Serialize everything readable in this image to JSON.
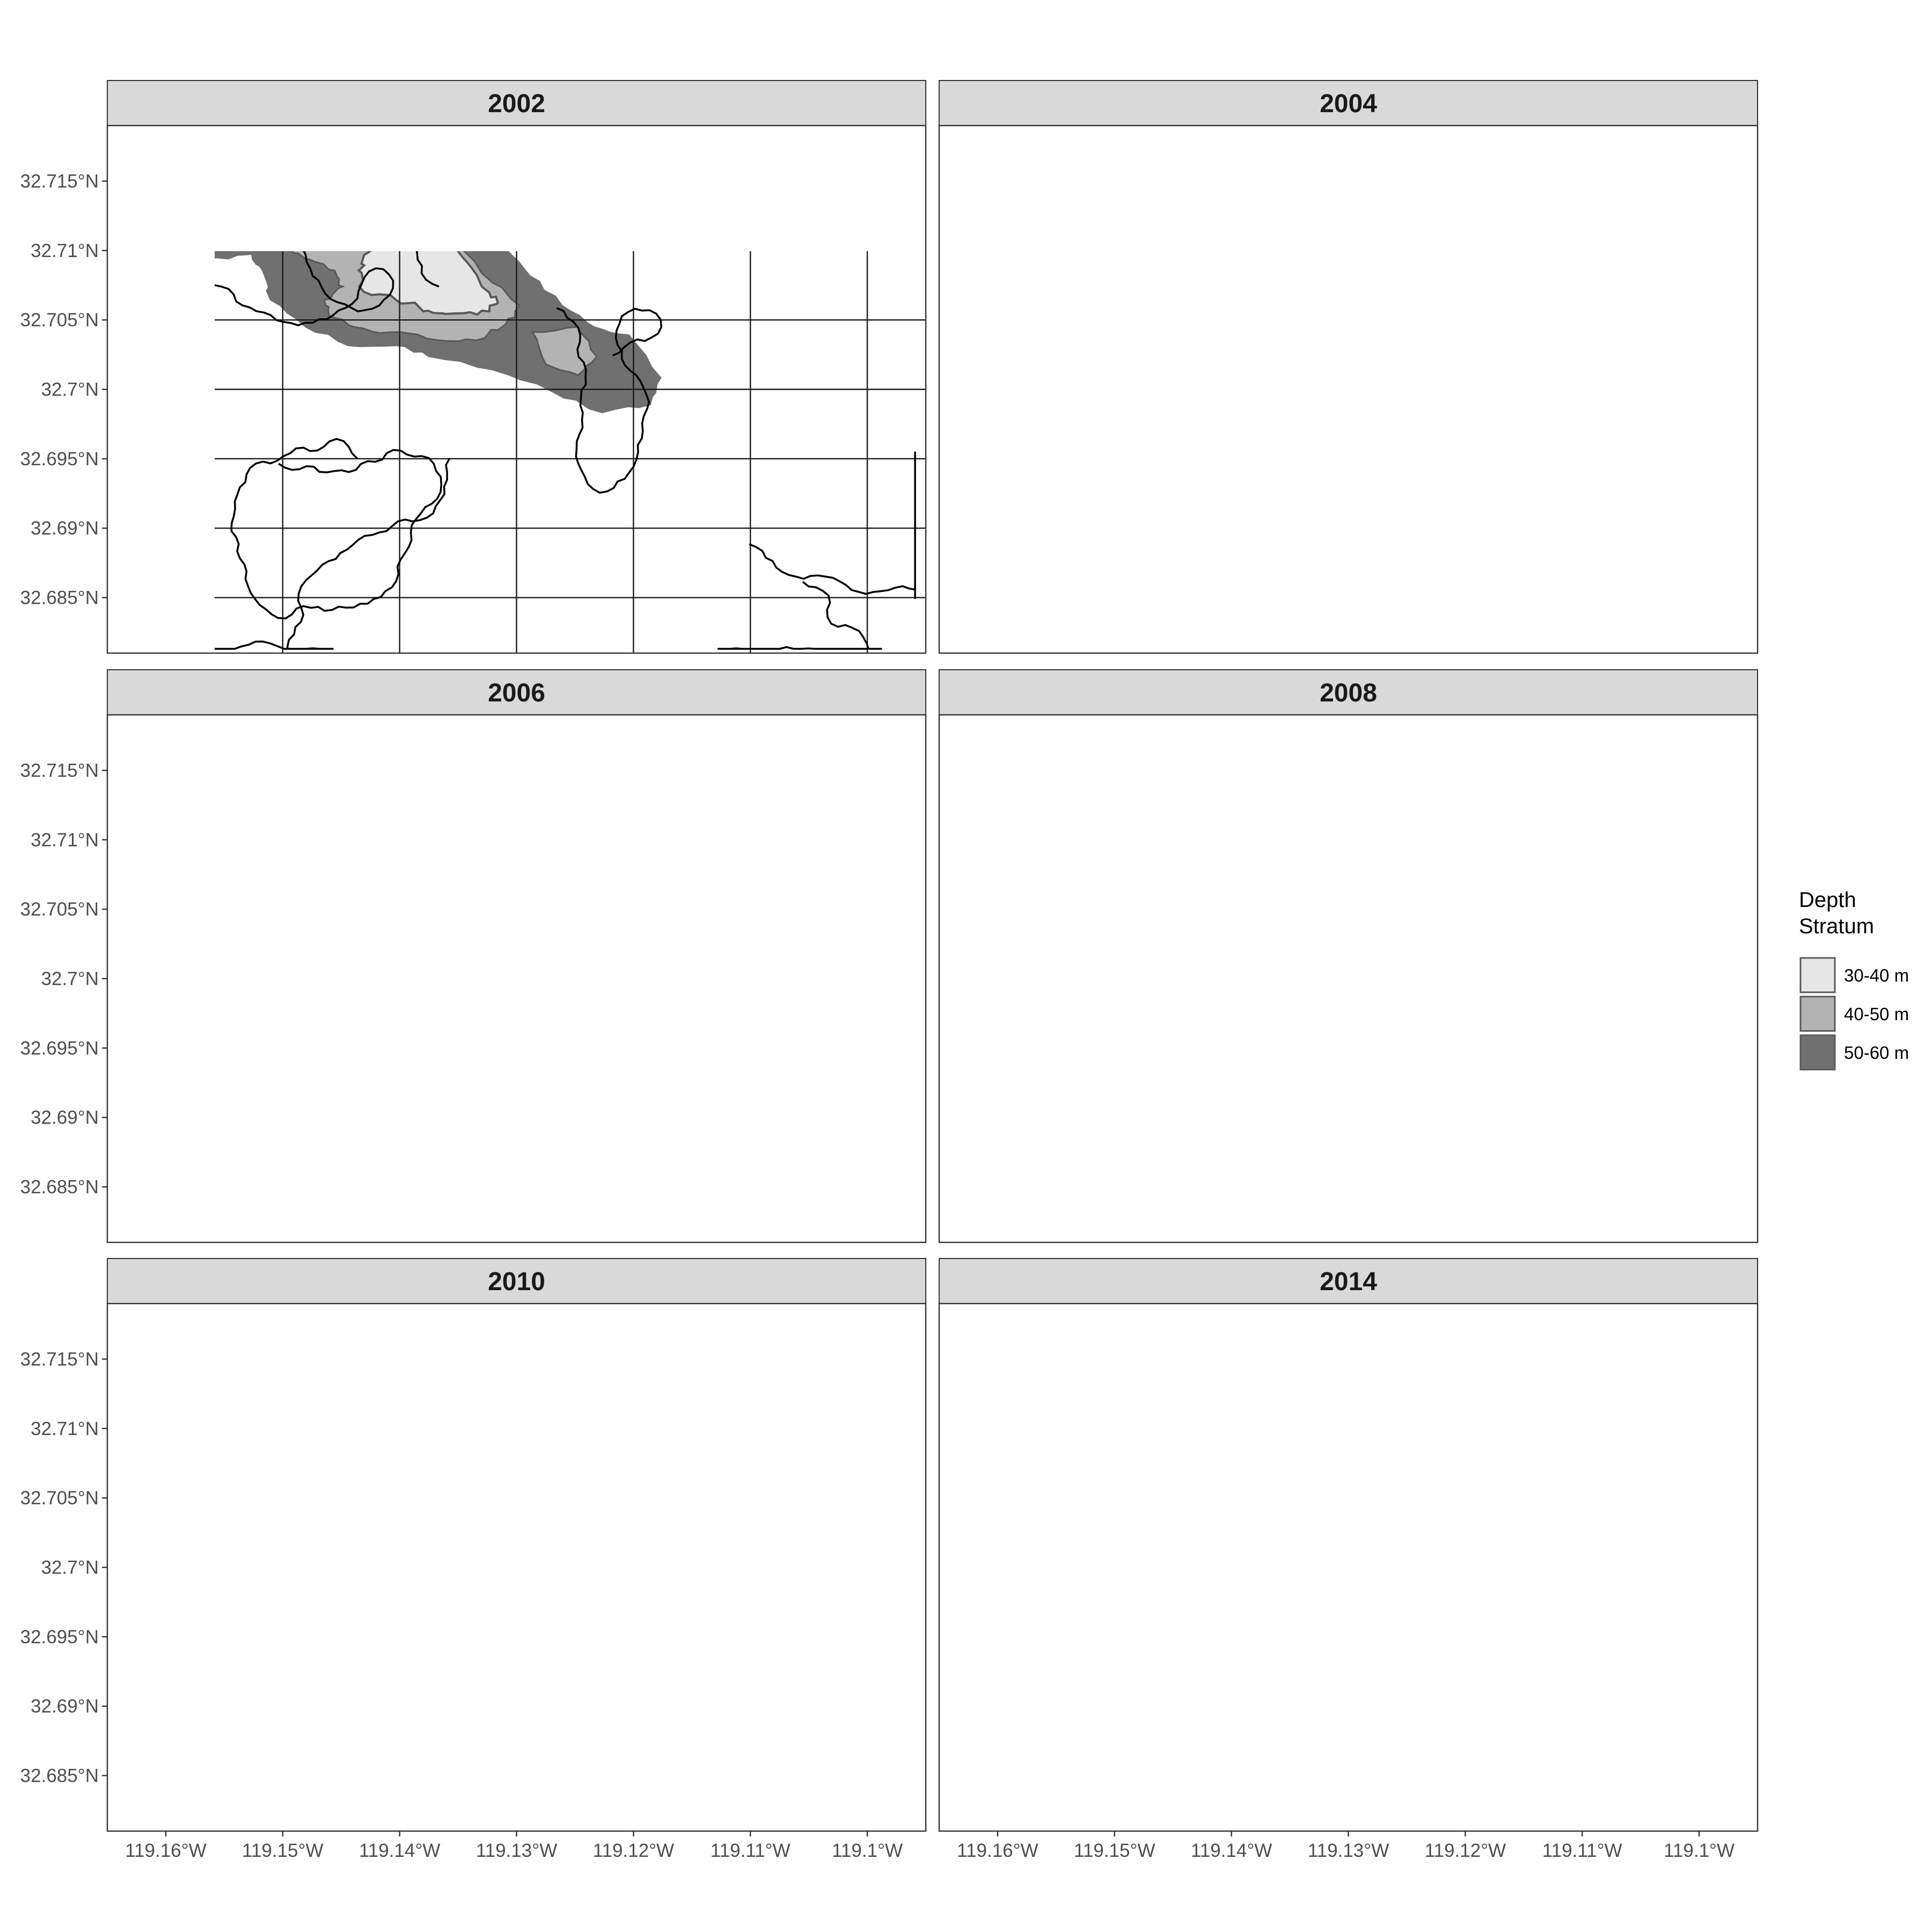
{
  "map": {
    "panels": [
      {
        "title": "2002",
        "track_style": "wander"
      },
      {
        "title": "2004",
        "track_style": "wander"
      },
      {
        "title": "2006",
        "track_style": "sparse"
      },
      {
        "title": "2008",
        "track_style": "dense"
      },
      {
        "title": "2010",
        "track_style": "straight"
      },
      {
        "title": "2014",
        "track_style": "segments"
      }
    ],
    "x_ticks": [
      "119.16°W",
      "119.15°W",
      "119.14°W",
      "119.13°W",
      "119.12°W",
      "119.11°W",
      "119.1°W"
    ],
    "y_ticks": [
      "32.715°N",
      "32.71°N",
      "32.705°N",
      "32.7°N",
      "32.695°N",
      "32.69°N",
      "32.685°N"
    ],
    "x_tick_values": [
      -119.16,
      -119.15,
      -119.14,
      -119.13,
      -119.12,
      -119.11,
      -119.1
    ],
    "y_tick_values": [
      32.715,
      32.71,
      32.705,
      32.7,
      32.695,
      32.69,
      32.685
    ],
    "x_range": [
      -119.165,
      -119.095
    ],
    "y_range": [
      32.681,
      32.719
    ],
    "grid": true,
    "legend": {
      "title_line1": "Depth",
      "title_line2": "Stratum",
      "position": "right",
      "items": [
        {
          "label": "30-40 m",
          "color": "#e6e6e6"
        },
        {
          "label": "40-50 m",
          "color": "#b3b3b3"
        },
        {
          "label": "50-60 m",
          "color": "#707070"
        }
      ]
    },
    "colors": {
      "strip": "#d9d9d9",
      "track": "#000000",
      "contour": "#595959",
      "grid": "#1a1a1a"
    }
  }
}
